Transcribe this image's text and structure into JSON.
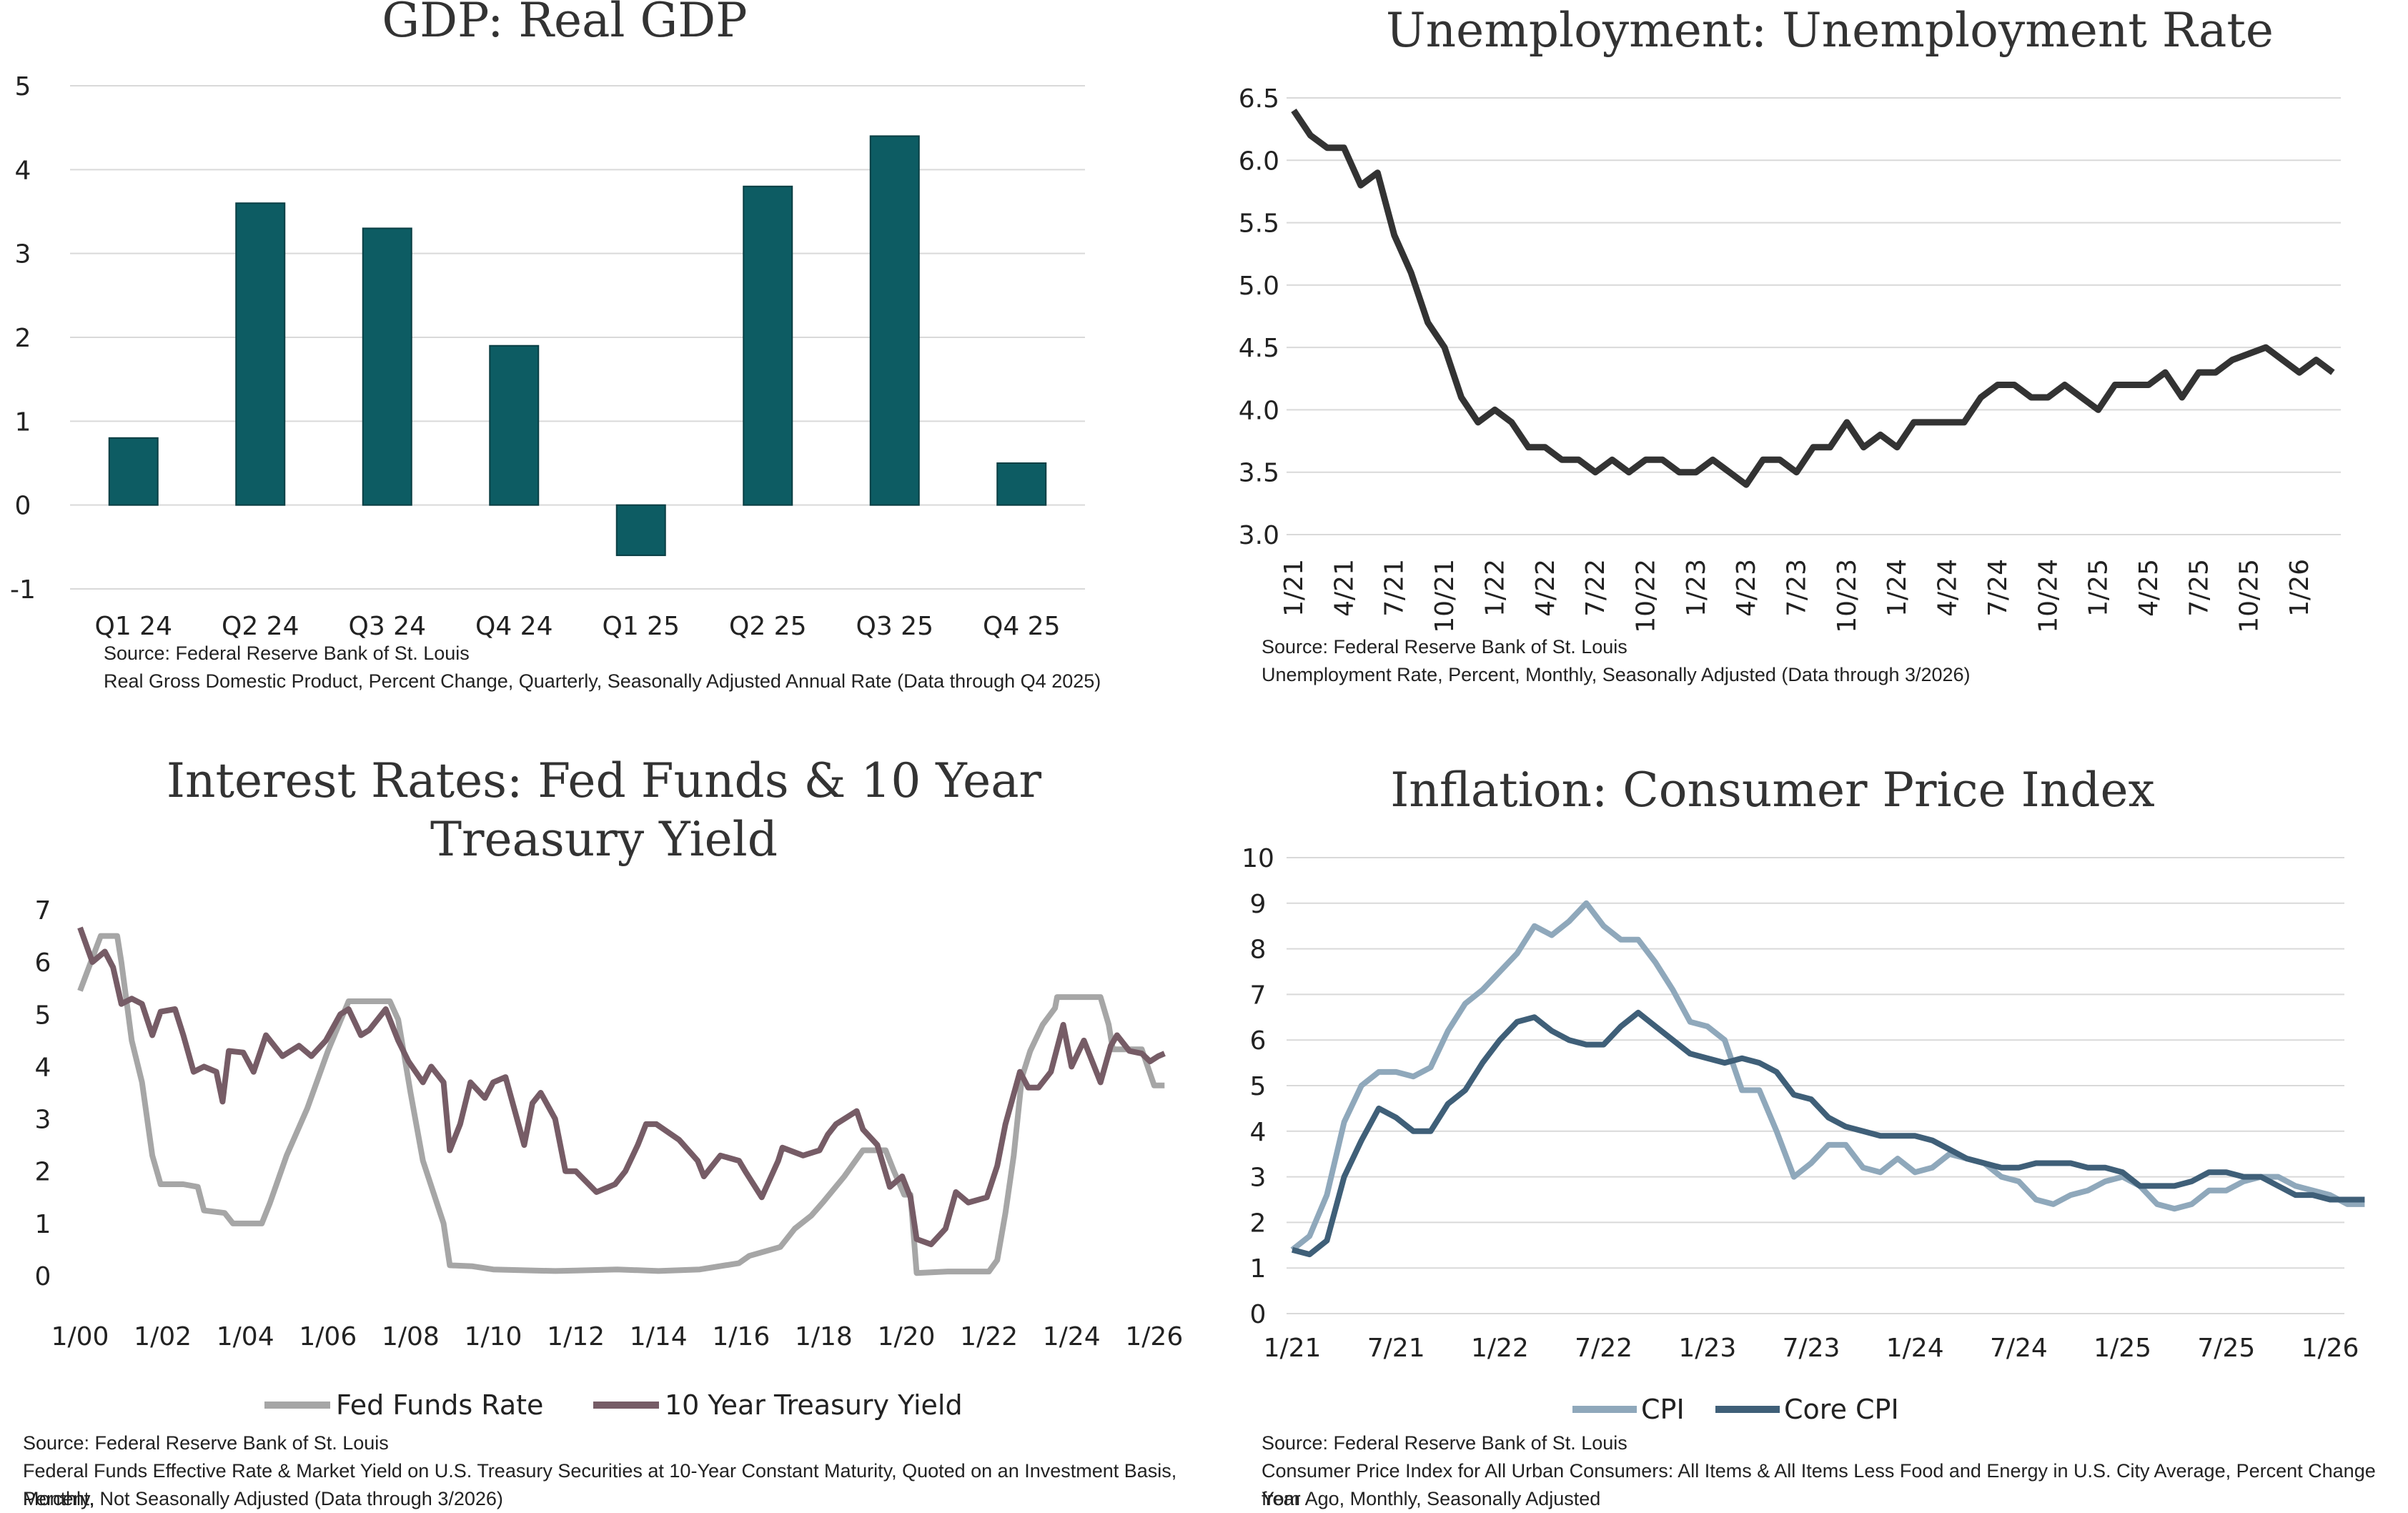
{
  "colors": {
    "gdp_bar": "#0d5c63",
    "unemployment_line": "#333333",
    "fed_funds": "#a6a6a6",
    "treasury": "#765c66",
    "cpi": "#8fa8bb",
    "core_cpi": "#3f5f78"
  },
  "panels": {
    "gdp": {
      "title": "GDP: Real GDP",
      "source": "Source: Federal Reserve Bank of St. Louis",
      "description": "Real Gross Domestic Product, Percent Change, Quarterly, Seasonally Adjusted Annual Rate (Data through Q4 2025)"
    },
    "unemployment": {
      "title": "Unemployment: Unemployment Rate",
      "source": "Source: Federal Reserve Bank of St. Louis",
      "description": "Unemployment Rate, Percent, Monthly, Seasonally Adjusted (Data through 3/2026)"
    },
    "rates": {
      "title_line1": "Interest Rates: Fed Funds & 10 Year",
      "title_line2": "Treasury Yield",
      "source": "Source: Federal Reserve Bank of St. Louis",
      "description_line1": "Federal Funds Effective Rate & Market Yield on U.S. Treasury Securities at 10-Year Constant Maturity, Quoted on an Investment Basis, Percent,",
      "description_line2": "Monthly, Not Seasonally Adjusted (Data through 3/2026)"
    },
    "inflation": {
      "title": "Inflation: Consumer Price Index",
      "source": "Source: Federal Reserve Bank of St. Louis",
      "description_line1": "Consumer Price Index for All Urban Consumers: All Items & All Items Less Food and Energy in U.S. City Average, Percent Change from",
      "description_line2": "Year Ago, Monthly, Seasonally Adjusted"
    }
  },
  "chart_data": [
    {
      "id": "gdp",
      "type": "bar",
      "title": "GDP: Real GDP",
      "categories": [
        "Q1 24",
        "Q2 24",
        "Q3 24",
        "Q4 24",
        "Q1 25",
        "Q2 25",
        "Q3 25",
        "Q4 25"
      ],
      "values": [
        0.8,
        3.6,
        3.3,
        1.9,
        -0.6,
        3.8,
        4.4,
        0.5
      ],
      "ylim": [
        -1,
        5
      ],
      "yticks": [
        5,
        4,
        3,
        2,
        1,
        0,
        -1
      ],
      "ytick_labels": [
        "5",
        "4",
        "3",
        "2",
        "1",
        "0",
        "-1"
      ],
      "grid": true
    },
    {
      "id": "unemployment",
      "type": "line",
      "title": "Unemployment: Unemployment Rate",
      "x_start": "1/21",
      "x_tick_labels": [
        "1/21",
        "4/21",
        "7/21",
        "10/21",
        "1/22",
        "4/22",
        "7/22",
        "10/22",
        "1/23",
        "4/23",
        "7/23",
        "10/23",
        "1/24",
        "4/24",
        "7/24",
        "10/24",
        "1/25",
        "4/25",
        "7/25",
        "10/25",
        "1/26"
      ],
      "values": [
        6.4,
        6.2,
        6.1,
        6.1,
        5.8,
        5.9,
        5.4,
        5.1,
        4.7,
        4.5,
        4.1,
        3.9,
        4.0,
        3.9,
        3.7,
        3.7,
        3.6,
        3.6,
        3.5,
        3.6,
        3.5,
        3.6,
        3.6,
        3.5,
        3.5,
        3.6,
        3.5,
        3.4,
        3.6,
        3.6,
        3.5,
        3.7,
        3.7,
        3.9,
        3.7,
        3.8,
        3.7,
        3.9,
        3.9,
        3.9,
        3.9,
        4.1,
        4.2,
        4.2,
        4.1,
        4.1,
        4.2,
        4.1,
        4.0,
        4.2,
        4.2,
        4.2,
        4.3,
        4.1,
        4.3,
        4.3,
        4.4,
        4.45,
        4.5,
        4.4,
        4.3,
        4.4,
        4.3
      ],
      "ylim": [
        3.0,
        6.5
      ],
      "yticks": [
        6.5,
        6.0,
        5.5,
        5.0,
        4.5,
        4.0,
        3.5,
        3.0
      ],
      "ytick_labels": [
        "6.5",
        "6.0",
        "5.5",
        "5.0",
        "4.5",
        "4.0",
        "3.5",
        "3.0"
      ],
      "grid": true
    },
    {
      "id": "rates",
      "type": "line",
      "title": "Interest Rates: Fed Funds & 10 Year Treasury Yield",
      "x_range": [
        "1/2000",
        "3/2026"
      ],
      "x_tick_labels": [
        "1/00",
        "1/02",
        "1/04",
        "1/06",
        "1/08",
        "1/10",
        "1/12",
        "1/14",
        "1/16",
        "1/18",
        "1/20",
        "1/22",
        "1/24",
        "1/26"
      ],
      "ylim": [
        0,
        7
      ],
      "yticks": [
        7,
        6,
        5,
        4,
        3,
        2,
        1,
        0
      ],
      "ytick_labels": [
        "7",
        "6",
        "5",
        "4",
        "3",
        "2",
        "1",
        "0"
      ],
      "legend_placement": "bottom",
      "series": [
        {
          "name": "Fed Funds Rate",
          "points": [
            [
              2000.0,
              5.45
            ],
            [
              2000.5,
              6.5
            ],
            [
              2000.9,
              6.5
            ],
            [
              2001.0,
              6.0
            ],
            [
              2001.25,
              4.5
            ],
            [
              2001.5,
              3.7
            ],
            [
              2001.75,
              2.3
            ],
            [
              2001.95,
              1.75
            ],
            [
              2002.5,
              1.75
            ],
            [
              2002.85,
              1.7
            ],
            [
              2003.0,
              1.25
            ],
            [
              2003.5,
              1.2
            ],
            [
              2003.7,
              1.0
            ],
            [
              2004.4,
              1.0
            ],
            [
              2004.6,
              1.4
            ],
            [
              2005.0,
              2.3
            ],
            [
              2005.5,
              3.2
            ],
            [
              2006.0,
              4.3
            ],
            [
              2006.5,
              5.25
            ],
            [
              2007.5,
              5.25
            ],
            [
              2007.7,
              4.9
            ],
            [
              2008.0,
              3.5
            ],
            [
              2008.3,
              2.2
            ],
            [
              2008.8,
              1.0
            ],
            [
              2008.95,
              0.2
            ],
            [
              2009.5,
              0.18
            ],
            [
              2010.0,
              0.12
            ],
            [
              2011.0,
              0.1
            ],
            [
              2011.5,
              0.09
            ],
            [
              2012.0,
              0.1
            ],
            [
              2013.0,
              0.12
            ],
            [
              2014.0,
              0.09
            ],
            [
              2015.0,
              0.12
            ],
            [
              2015.95,
              0.24
            ],
            [
              2016.2,
              0.38
            ],
            [
              2016.95,
              0.55
            ],
            [
              2017.3,
              0.9
            ],
            [
              2017.7,
              1.15
            ],
            [
              2018.0,
              1.42
            ],
            [
              2018.5,
              1.9
            ],
            [
              2018.95,
              2.4
            ],
            [
              2019.5,
              2.4
            ],
            [
              2019.7,
              2.0
            ],
            [
              2019.95,
              1.55
            ],
            [
              2020.1,
              1.55
            ],
            [
              2020.25,
              0.05
            ],
            [
              2021.0,
              0.08
            ],
            [
              2022.0,
              0.08
            ],
            [
              2022.2,
              0.3
            ],
            [
              2022.4,
              1.2
            ],
            [
              2022.6,
              2.3
            ],
            [
              2022.8,
              3.8
            ],
            [
              2023.0,
              4.3
            ],
            [
              2023.3,
              4.8
            ],
            [
              2023.6,
              5.12
            ],
            [
              2023.65,
              5.33
            ],
            [
              2024.7,
              5.33
            ],
            [
              2024.9,
              4.8
            ],
            [
              2025.0,
              4.33
            ],
            [
              2025.7,
              4.33
            ],
            [
              2025.8,
              4.1
            ],
            [
              2026.0,
              3.64
            ],
            [
              2026.25,
              3.64
            ]
          ]
        },
        {
          "name": "10 Year Treasury Yield",
          "points": [
            [
              2000.0,
              6.66
            ],
            [
              2000.3,
              6.0
            ],
            [
              2000.6,
              6.2
            ],
            [
              2000.8,
              5.9
            ],
            [
              2001.0,
              5.2
            ],
            [
              2001.25,
              5.3
            ],
            [
              2001.5,
              5.2
            ],
            [
              2001.75,
              4.6
            ],
            [
              2001.95,
              5.05
            ],
            [
              2002.3,
              5.1
            ],
            [
              2002.5,
              4.6
            ],
            [
              2002.75,
              3.9
            ],
            [
              2003.0,
              4.0
            ],
            [
              2003.3,
              3.9
            ],
            [
              2003.45,
              3.33
            ],
            [
              2003.6,
              4.3
            ],
            [
              2003.95,
              4.27
            ],
            [
              2004.2,
              3.9
            ],
            [
              2004.5,
              4.6
            ],
            [
              2004.9,
              4.2
            ],
            [
              2005.3,
              4.4
            ],
            [
              2005.6,
              4.2
            ],
            [
              2005.95,
              4.5
            ],
            [
              2006.3,
              5.0
            ],
            [
              2006.5,
              5.1
            ],
            [
              2006.8,
              4.6
            ],
            [
              2007.0,
              4.7
            ],
            [
              2007.4,
              5.1
            ],
            [
              2007.7,
              4.5
            ],
            [
              2007.95,
              4.1
            ],
            [
              2008.3,
              3.7
            ],
            [
              2008.5,
              4.0
            ],
            [
              2008.8,
              3.7
            ],
            [
              2008.95,
              2.4
            ],
            [
              2009.2,
              2.9
            ],
            [
              2009.45,
              3.7
            ],
            [
              2009.8,
              3.4
            ],
            [
              2010.0,
              3.7
            ],
            [
              2010.3,
              3.8
            ],
            [
              2010.75,
              2.5
            ],
            [
              2010.95,
              3.3
            ],
            [
              2011.15,
              3.5
            ],
            [
              2011.5,
              3.0
            ],
            [
              2011.75,
              2.0
            ],
            [
              2012.0,
              2.0
            ],
            [
              2012.5,
              1.6
            ],
            [
              2012.95,
              1.75
            ],
            [
              2013.2,
              2.0
            ],
            [
              2013.5,
              2.5
            ],
            [
              2013.7,
              2.9
            ],
            [
              2013.95,
              2.9
            ],
            [
              2014.5,
              2.6
            ],
            [
              2014.95,
              2.2
            ],
            [
              2015.1,
              1.9
            ],
            [
              2015.5,
              2.3
            ],
            [
              2015.95,
              2.2
            ],
            [
              2016.1,
              2.0
            ],
            [
              2016.5,
              1.5
            ],
            [
              2016.9,
              2.2
            ],
            [
              2017.0,
              2.45
            ],
            [
              2017.5,
              2.3
            ],
            [
              2017.9,
              2.4
            ],
            [
              2018.1,
              2.7
            ],
            [
              2018.3,
              2.9
            ],
            [
              2018.8,
              3.15
            ],
            [
              2018.95,
              2.8
            ],
            [
              2019.3,
              2.5
            ],
            [
              2019.6,
              1.7
            ],
            [
              2019.9,
              1.9
            ],
            [
              2020.1,
              1.5
            ],
            [
              2020.25,
              0.7
            ],
            [
              2020.6,
              0.6
            ],
            [
              2020.95,
              0.9
            ],
            [
              2021.2,
              1.6
            ],
            [
              2021.5,
              1.4
            ],
            [
              2021.95,
              1.5
            ],
            [
              2022.2,
              2.1
            ],
            [
              2022.4,
              2.9
            ],
            [
              2022.75,
              3.9
            ],
            [
              2022.95,
              3.6
            ],
            [
              2023.2,
              3.6
            ],
            [
              2023.5,
              3.9
            ],
            [
              2023.8,
              4.8
            ],
            [
              2024.0,
              4.0
            ],
            [
              2024.3,
              4.5
            ],
            [
              2024.7,
              3.7
            ],
            [
              2024.95,
              4.4
            ],
            [
              2025.1,
              4.6
            ],
            [
              2025.4,
              4.3
            ],
            [
              2025.7,
              4.25
            ],
            [
              2025.9,
              4.1
            ],
            [
              2026.1,
              4.2
            ],
            [
              2026.25,
              4.25
            ]
          ]
        }
      ],
      "grid": false
    },
    {
      "id": "inflation",
      "type": "line",
      "title": "Inflation: Consumer Price Index",
      "x_start": "1/21",
      "x_tick_labels": [
        "1/21",
        "7/21",
        "1/22",
        "7/22",
        "1/23",
        "7/23",
        "1/24",
        "7/24",
        "1/25",
        "7/25",
        "1/26"
      ],
      "ylim": [
        0,
        10
      ],
      "yticks": [
        10,
        9,
        8,
        7,
        6,
        5,
        4,
        3,
        2,
        1,
        0
      ],
      "ytick_labels": [
        "10",
        "9",
        "8",
        "7",
        "6",
        "5",
        "4",
        "3",
        "2",
        "1",
        "0"
      ],
      "legend_placement": "bottom",
      "series": [
        {
          "name": "CPI",
          "values": [
            1.4,
            1.7,
            2.6,
            4.2,
            5.0,
            5.3,
            5.3,
            5.2,
            5.4,
            6.2,
            6.8,
            7.1,
            7.5,
            7.9,
            8.5,
            8.3,
            8.6,
            9.0,
            8.5,
            8.2,
            8.2,
            7.7,
            7.1,
            6.4,
            6.3,
            6.0,
            4.9,
            4.9,
            4.0,
            3.0,
            3.3,
            3.7,
            3.7,
            3.2,
            3.1,
            3.4,
            3.1,
            3.2,
            3.5,
            3.4,
            3.3,
            3.0,
            2.9,
            2.5,
            2.4,
            2.6,
            2.7,
            2.9,
            3.0,
            2.8,
            2.4,
            2.3,
            2.4,
            2.7,
            2.7,
            2.9,
            3.0,
            3.0,
            2.8,
            2.7,
            2.6,
            2.4,
            2.4
          ]
        },
        {
          "name": "Core CPI",
          "values": [
            1.4,
            1.3,
            1.6,
            3.0,
            3.8,
            4.5,
            4.3,
            4.0,
            4.0,
            4.6,
            4.9,
            5.5,
            6.0,
            6.4,
            6.5,
            6.2,
            6.0,
            5.9,
            5.9,
            6.3,
            6.6,
            6.3,
            6.0,
            5.7,
            5.6,
            5.5,
            5.6,
            5.5,
            5.3,
            4.8,
            4.7,
            4.3,
            4.1,
            4.0,
            3.9,
            3.9,
            3.9,
            3.8,
            3.6,
            3.4,
            3.3,
            3.2,
            3.2,
            3.3,
            3.3,
            3.3,
            3.2,
            3.2,
            3.1,
            2.8,
            2.8,
            2.8,
            2.9,
            3.1,
            3.1,
            3.0,
            3.0,
            2.8,
            2.6,
            2.6,
            2.5,
            2.5,
            2.5
          ]
        }
      ],
      "grid": true
    }
  ]
}
